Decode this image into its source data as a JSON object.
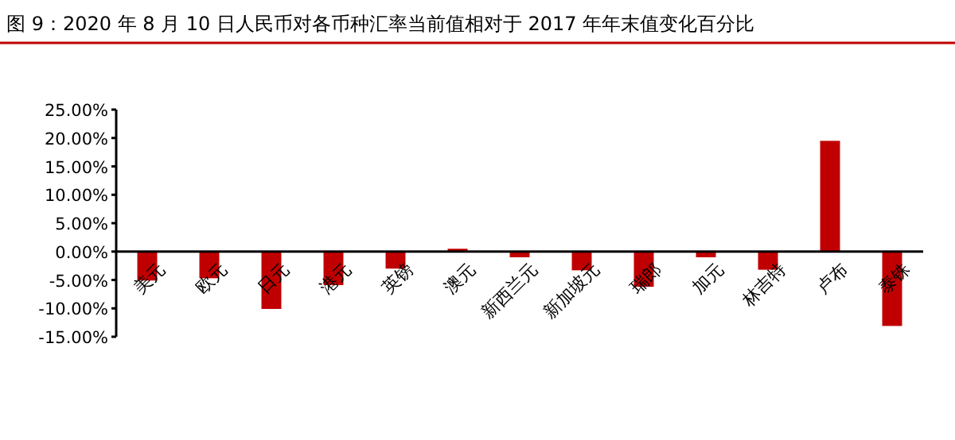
{
  "chart_data": {
    "type": "bar",
    "title": "图 9：2020 年 8 月 10 日人民币对各币种汇率当前值相对于 2017 年年末值变化百分比",
    "categories": [
      "美元",
      "欧元",
      "日元",
      "港元",
      "英镑",
      "澳元",
      "新西兰元",
      "新加坡元",
      "瑞郎",
      "加元",
      "林吉特",
      "卢布",
      "泰铢"
    ],
    "values": [
      -5.1,
      -4.7,
      -10.1,
      -5.9,
      -3.0,
      0.5,
      -1.0,
      -3.3,
      -6.2,
      -1.0,
      -3.2,
      19.5,
      -13.1
    ],
    "color": "#c00000",
    "ylim": [
      -15,
      25
    ],
    "yticks": [
      {
        "value": -15,
        "label": "-15.00%"
      },
      {
        "value": -10,
        "label": "-10.00%"
      },
      {
        "value": -5,
        "label": "-5.00%"
      },
      {
        "value": 0,
        "label": "0.00%"
      },
      {
        "value": 5,
        "label": "5.00%"
      },
      {
        "value": 10,
        "label": "10.00%"
      },
      {
        "value": 15,
        "label": "15.00%"
      },
      {
        "value": 20,
        "label": "20.00%"
      },
      {
        "value": 25,
        "label": "25.00%"
      }
    ]
  }
}
